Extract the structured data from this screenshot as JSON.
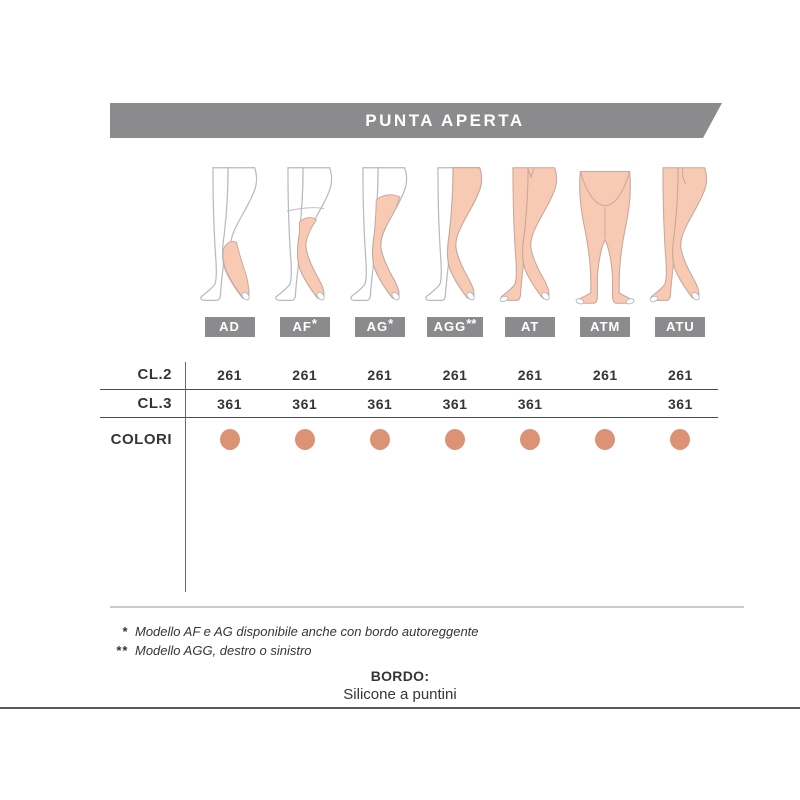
{
  "banner": {
    "title": "PUNTA APERTA"
  },
  "models": [
    {
      "name": "AD",
      "sup": "",
      "figure_kind": "knee-high-open-toe",
      "cl2": "261",
      "cl3": "361",
      "has_color_dot": true
    },
    {
      "name": "AF",
      "sup": "*",
      "figure_kind": "above-knee-open-toe",
      "cl2": "261",
      "cl3": "361",
      "has_color_dot": true
    },
    {
      "name": "AG",
      "sup": "*",
      "figure_kind": "thigh-high-open-toe",
      "cl2": "261",
      "cl3": "361",
      "has_color_dot": true
    },
    {
      "name": "AGG",
      "sup": "**",
      "figure_kind": "single-leg-waist-open-toe",
      "cl2": "261",
      "cl3": "361",
      "has_color_dot": true
    },
    {
      "name": "AT",
      "sup": "",
      "figure_kind": "pantyhose-open-toe",
      "cl2": "261",
      "cl3": "361",
      "has_color_dot": true
    },
    {
      "name": "ATM",
      "sup": "",
      "figure_kind": "maternity-pantyhose-open-toe",
      "cl2": "261",
      "cl3": "",
      "has_color_dot": true
    },
    {
      "name": "ATU",
      "sup": "",
      "figure_kind": "unisex-pantyhose-open-toe",
      "cl2": "261",
      "cl3": "361",
      "has_color_dot": true
    }
  ],
  "table": {
    "row_labels": [
      "CL.2",
      "CL.3",
      "COLORI"
    ]
  },
  "footnotes": [
    {
      "marker": "*",
      "text": "Modello AF e AG disponibile anche con bordo autoreggente"
    },
    {
      "marker": "**",
      "text": "Modello AGG, destro o sinistro"
    }
  ],
  "bordo": {
    "title": "BORDO:",
    "subtitle": "Silicone a puntini"
  },
  "colors": {
    "banner_gray": "#8b8b8e",
    "label_gray": "#8b8b8e",
    "text_dark": "#353538",
    "dot_salmon": "#db9275",
    "stocking_fill": "#f8c9b3",
    "stocking_stroke": "#c8a698",
    "outline_gray": "#b6bac3",
    "line_dark": "#4c4c4e",
    "line_light": "#c9c9cb",
    "bottom_line": "#57595c"
  }
}
